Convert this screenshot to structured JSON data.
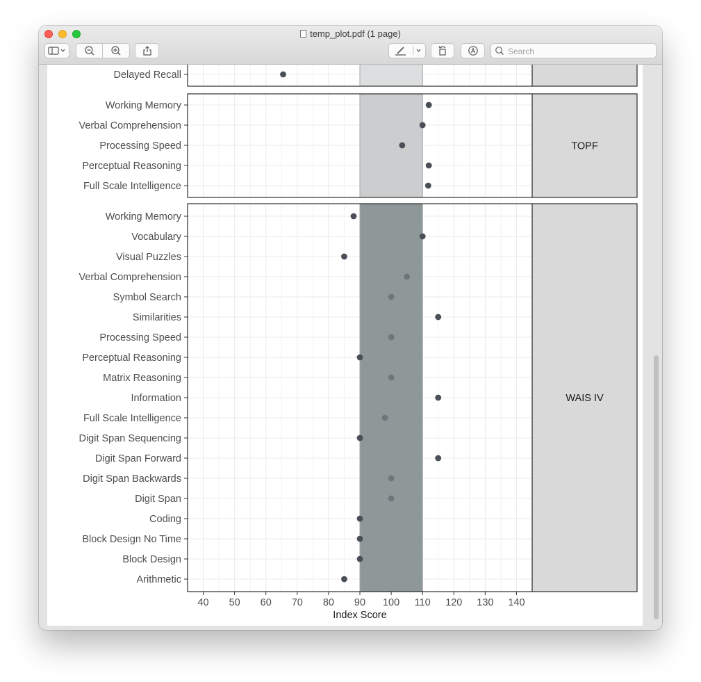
{
  "window": {
    "title": "temp_plot.pdf (1 page)",
    "search": {
      "placeholder": "Search",
      "value": ""
    }
  },
  "toolbar": {
    "sidebar": "sidebar-icon",
    "zoom_out": "zoom-out-icon",
    "zoom_in": "zoom-in-icon",
    "share": "share-icon",
    "markup": "pencil-icon",
    "rotate": "rotate-icon",
    "annotate": "markup-icon"
  },
  "colors": {
    "band_light": "#cccccc",
    "band_mid": "#a6a6a6",
    "band_dark": "#7f8787",
    "point": "#4a4e57",
    "strip_fill": "#d9d9d9",
    "grid": "#ebebeb"
  },
  "chart_data": {
    "type": "scatter",
    "title": "",
    "xlabel": "Index Score",
    "ylabel": "",
    "xlim": [
      35,
      145
    ],
    "x_ticks": [
      40,
      50,
      60,
      70,
      80,
      90,
      100,
      110,
      120,
      130,
      140
    ],
    "reference_band": [
      90,
      110
    ],
    "grid": true,
    "facets": [
      {
        "strip_label": "",
        "partial": true,
        "band_color": "#dcdedf",
        "categories": [
          "Delayed Recall"
        ],
        "values": [
          65.5
        ]
      },
      {
        "strip_label": "TOPF",
        "band_color": "#cbcdcf",
        "categories": [
          "Working Memory",
          "Verbal Comprehension",
          "Processing Speed",
          "Perceptual Reasoning",
          "Full Scale Intelligence"
        ],
        "values": [
          112,
          110,
          103.5,
          112,
          111.8
        ]
      },
      {
        "strip_label": "WAIS IV",
        "band_color": "#8f9898",
        "categories": [
          "Working Memory",
          "Vocabulary",
          "Visual Puzzles",
          "Verbal Comprehension",
          "Symbol Search",
          "Similarities",
          "Processing Speed",
          "Perceptual Reasoning",
          "Matrix Reasoning",
          "Information",
          "Full Scale Intelligence",
          "Digit Span Sequencing",
          "Digit Span Forward",
          "Digit Span Backwards",
          "Digit Span",
          "Coding",
          "Block Design No Time",
          "Block Design",
          "Arithmetic"
        ],
        "values": [
          88,
          110,
          85,
          105,
          100,
          115,
          100,
          90,
          100,
          115,
          98,
          90,
          115,
          100,
          100,
          90,
          90,
          90,
          85
        ]
      }
    ]
  }
}
